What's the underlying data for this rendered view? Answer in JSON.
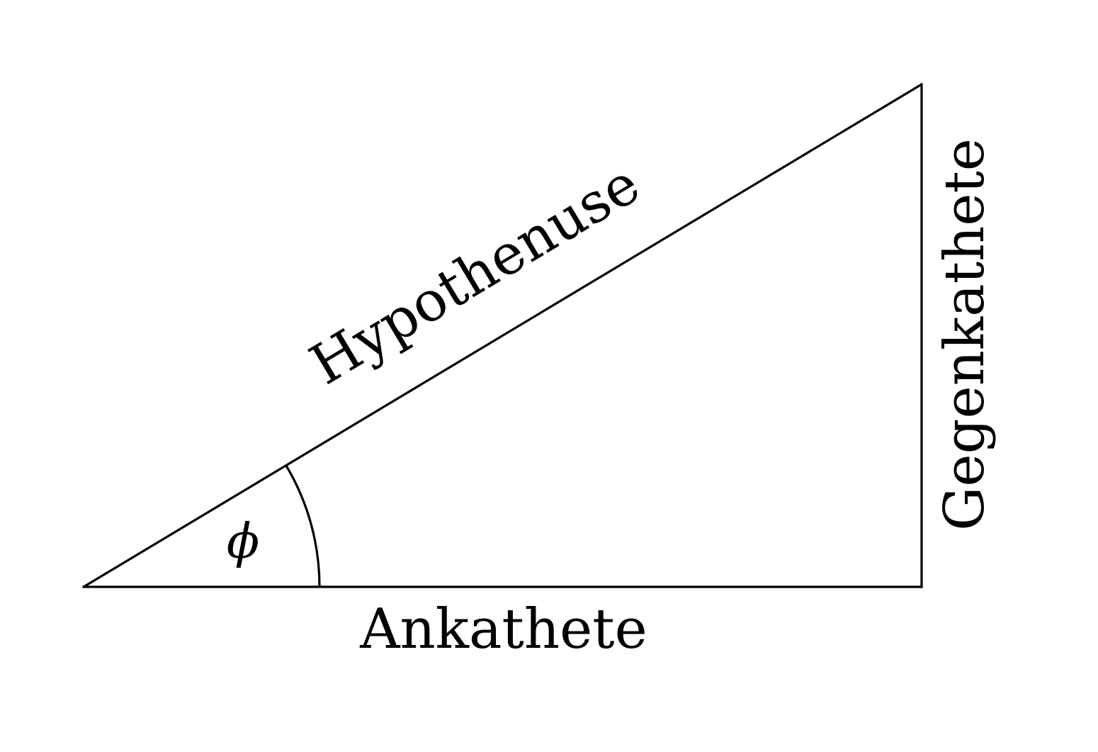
{
  "figure": {
    "labels": {
      "hypotenuse": "Hypothenuse",
      "adjacent": "Ankathete",
      "opposite": "Gegenkathete",
      "angle": "ϕ"
    },
    "colors": {
      "stroke": "#000000",
      "background": "#ffffff"
    }
  }
}
